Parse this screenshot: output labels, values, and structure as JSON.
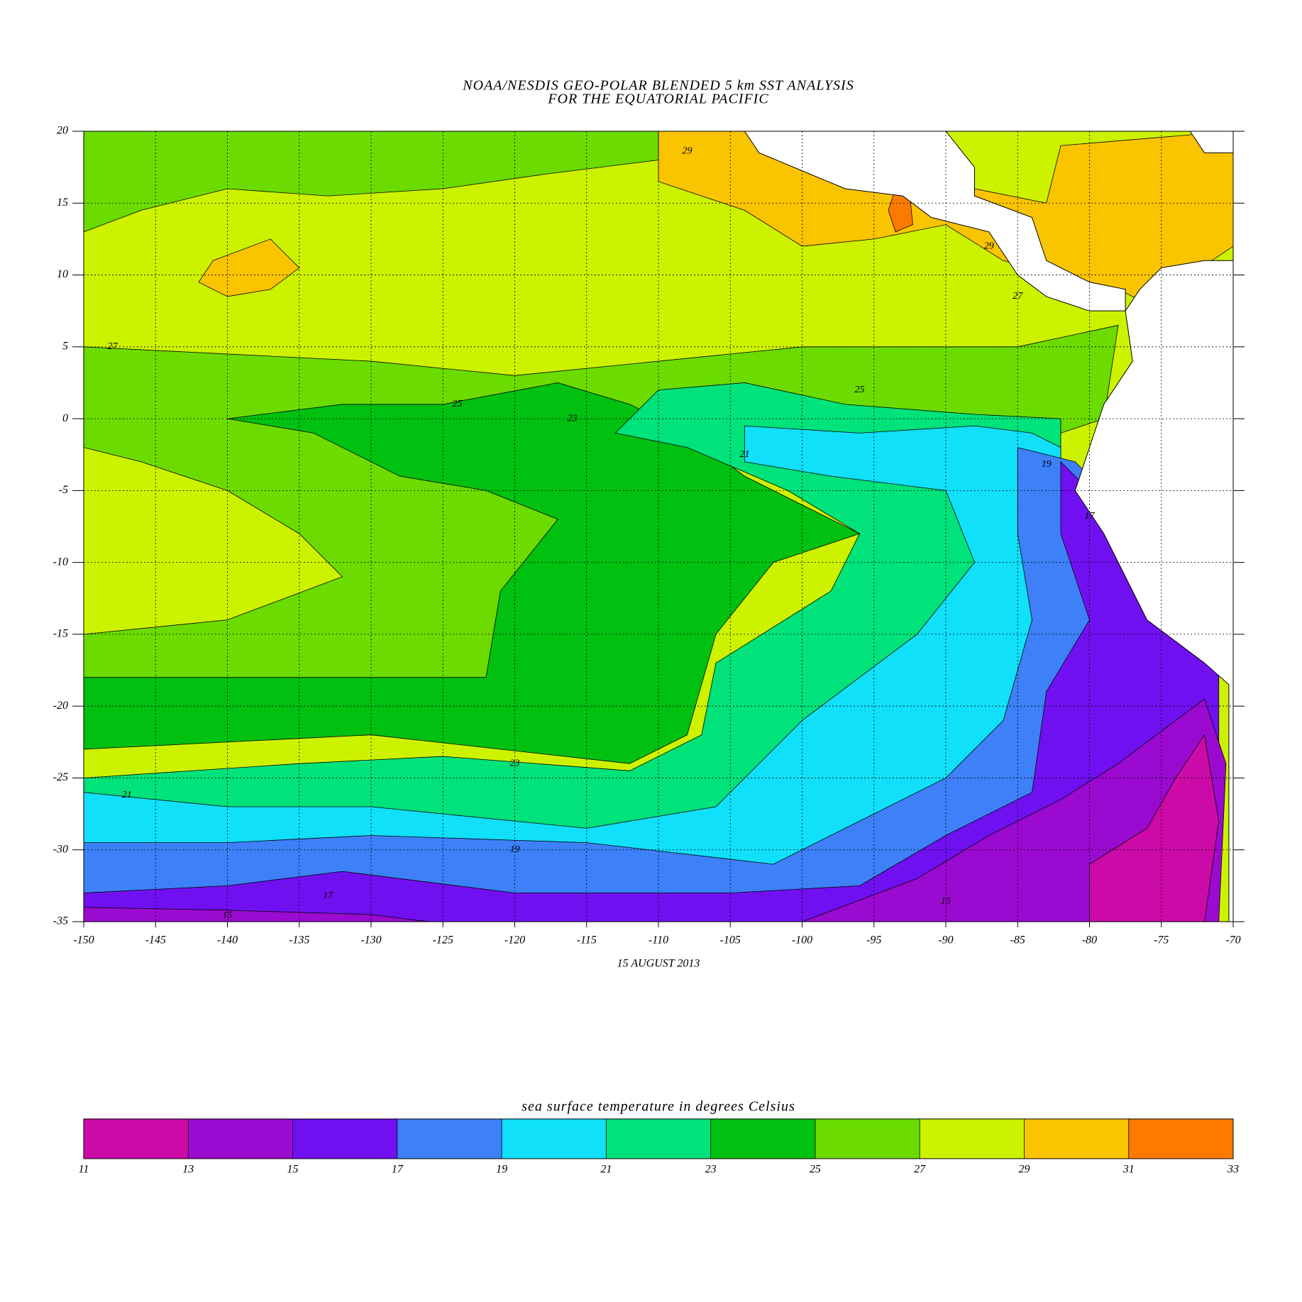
{
  "map": {
    "title": "NOAA/NESDIS GEO-POLAR BLENDED 5 km SST ANALYSIS",
    "subtitle": "FOR THE EQUATORIAL PACIFIC",
    "date": "15 AUGUST 2013",
    "xlim": [
      -150,
      -70
    ],
    "ylim": [
      -35,
      20
    ],
    "xticks": [
      -150,
      -145,
      -140,
      -135,
      -130,
      -125,
      -120,
      -115,
      -110,
      -105,
      -100,
      -95,
      -90,
      -85,
      -80,
      -75,
      -70
    ],
    "yticks": [
      20,
      15,
      10,
      5,
      0,
      -5,
      -10,
      -15,
      -20,
      -25,
      -30,
      -35
    ],
    "grid": true,
    "contour_labels": [
      {
        "value": 29,
        "lon": -108,
        "lat": 18.6
      },
      {
        "value": 29,
        "lon": -87,
        "lat": 12
      },
      {
        "value": 27,
        "lon": -148,
        "lat": 5
      },
      {
        "value": 27,
        "lon": -85,
        "lat": 8.5
      },
      {
        "value": 25,
        "lon": -124,
        "lat": 1
      },
      {
        "value": 25,
        "lon": -96,
        "lat": 2
      },
      {
        "value": 23,
        "lon": -116,
        "lat": 0
      },
      {
        "value": 21,
        "lon": -104,
        "lat": -2.5
      },
      {
        "value": 19,
        "lon": -83,
        "lat": -3.2
      },
      {
        "value": 17,
        "lon": -80,
        "lat": -6.8
      },
      {
        "value": 23,
        "lon": -120,
        "lat": -24
      },
      {
        "value": 21,
        "lon": -147,
        "lat": -26.2
      },
      {
        "value": 19,
        "lon": -120,
        "lat": -30
      },
      {
        "value": 17,
        "lon": -133,
        "lat": -33.2
      },
      {
        "value": 15,
        "lon": -140,
        "lat": -34.6
      },
      {
        "value": 15,
        "lon": -90,
        "lat": -33.6
      }
    ],
    "colorbar": {
      "title": "sea surface temperature in degrees Celsius",
      "bounds": [
        11,
        13,
        15,
        17,
        19,
        21,
        23,
        25,
        27,
        29,
        31,
        33
      ],
      "colors": [
        "#cc0aa8",
        "#9b0ad0",
        "#7010f0",
        "#3d80f8",
        "#10e0fa",
        "#00e27a",
        "#00c010",
        "#6cdc00",
        "#cdf200",
        "#fbc400",
        "#fd7a00"
      ]
    }
  }
}
